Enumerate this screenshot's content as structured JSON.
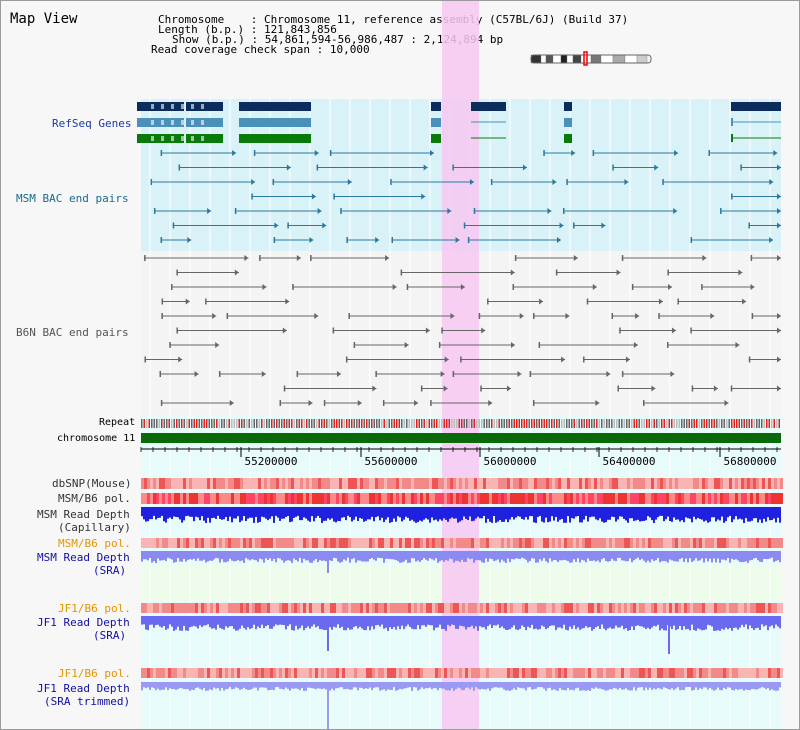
{
  "view_title": "Map View",
  "header": {
    "chromosome_label": "Chromosome",
    "chromosome_value": "Chromosome 11, reference assembly (C57BL/6J) (Build 37)",
    "length_label": "Length (b.p.)",
    "length_value": "121,843,856",
    "show_label": "Show (b.p.)",
    "show_value": "54,861,594-56,986,487 : 2,124,894 bp",
    "span_label": "Read coverage check span",
    "span_value": "10,000"
  },
  "tracks": {
    "refseq": "RefSeq Genes",
    "msm_bac": "MSM BAC end pairs",
    "b6n_bac": "B6N BAC end pairs",
    "repeat": "Repeat",
    "chromosome": "chromosome 11",
    "dbsnp": "dbSNP(Mouse)",
    "msm_b6_pol_1": "MSM/B6 pol.",
    "msm_depth_cap_1": "MSM Read Depth",
    "msm_depth_cap_2": "(Capillary)",
    "msm_b6_pol_2": "MSM/B6 pol.",
    "msm_depth_sra_1": "MSM Read Depth",
    "msm_depth_sra_2": "(SRA)",
    "jf1_b6_pol_1": "JF1/B6 pol.",
    "jf1_depth_sra_1": "JF1 Read Depth",
    "jf1_depth_sra_2": "(SRA)",
    "jf1_b6_pol_2": "JF1/B6 pol.",
    "jf1_depth_trim_1": "JF1 Read Depth",
    "jf1_depth_trim_2": "(SRA trimmed)"
  },
  "axis_ticks": [
    "55200000",
    "55600000",
    "56000000",
    "56400000",
    "56800000"
  ],
  "colors": {
    "refseq_label": "#1a3aa0",
    "msm_bac_label": "#1a6a8a",
    "b6n_label": "#555555",
    "orange_label": "#e69400",
    "blue_label": "#1010a0",
    "highlight": "#f5c6f0",
    "chromosome": "#0a6a0a"
  }
}
